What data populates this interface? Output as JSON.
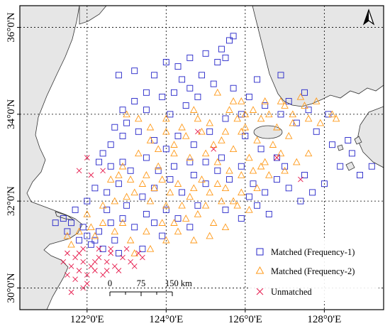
{
  "map": {
    "lon_range": [
      120.3,
      129.5
    ],
    "lat_range": [
      29.5,
      36.5
    ],
    "x_ticks": [
      {
        "value": 122,
        "label": "122°0'E"
      },
      {
        "value": 124,
        "label": "124°0'E"
      },
      {
        "value": 126,
        "label": "126°0'E"
      },
      {
        "value": 128,
        "label": "128°0'E"
      }
    ],
    "y_ticks": [
      {
        "value": 30,
        "label": "30°0'N"
      },
      {
        "value": 32,
        "label": "32°0'N"
      },
      {
        "value": 34,
        "label": "34°0'N"
      },
      {
        "value": 36,
        "label": "36°0'N"
      }
    ],
    "grid": true,
    "land_color": "#e6e6e6",
    "sea_color": "#ffffff",
    "north_arrow": "north-arrow-icon"
  },
  "series_styles": {
    "matched1": {
      "color": "#2424c8",
      "marker": "square"
    },
    "matched2": {
      "color": "#ff9a1a",
      "marker": "triangle"
    },
    "unmatched": {
      "color": "#e6194b",
      "marker": "x"
    }
  },
  "legend": {
    "placement": "bottom-right",
    "items": [
      {
        "key": "matched1",
        "label": "Matched (Frequency-1)"
      },
      {
        "key": "matched2",
        "label": "Matched (Frequency-2)"
      },
      {
        "key": "unmatched",
        "label": "Unmatched"
      }
    ]
  },
  "scale_bar": {
    "labels": [
      "0",
      "75",
      "150 km"
    ]
  },
  "chart_data": {
    "type": "scatter",
    "xlabel": "",
    "ylabel": "",
    "xlim": [
      120.3,
      129.5
    ],
    "ylim": [
      29.5,
      36.5
    ],
    "series": [
      {
        "key": "matched1",
        "name": "Matched (Frequency-1)",
        "points": [
          [
            125.7,
            35.8
          ],
          [
            125.6,
            35.7
          ],
          [
            125.4,
            35.5
          ],
          [
            125.5,
            35.3
          ],
          [
            125.3,
            35.2
          ],
          [
            125.0,
            35.4
          ],
          [
            124.6,
            35.3
          ],
          [
            124.3,
            35.1
          ],
          [
            124.0,
            35.2
          ],
          [
            123.7,
            34.9
          ],
          [
            124.4,
            34.8
          ],
          [
            124.9,
            34.9
          ],
          [
            125.2,
            34.7
          ],
          [
            124.6,
            34.6
          ],
          [
            124.2,
            34.5
          ],
          [
            123.9,
            34.4
          ],
          [
            123.5,
            34.5
          ],
          [
            123.2,
            34.3
          ],
          [
            122.9,
            34.1
          ],
          [
            123.5,
            34.1
          ],
          [
            124.1,
            34.0
          ],
          [
            124.5,
            34.2
          ],
          [
            124.8,
            34.4
          ],
          [
            123.0,
            33.8
          ],
          [
            122.7,
            33.7
          ],
          [
            122.9,
            33.5
          ],
          [
            122.6,
            33.3
          ],
          [
            122.4,
            33.1
          ],
          [
            122.3,
            32.9
          ],
          [
            122.6,
            32.8
          ],
          [
            122.9,
            32.9
          ],
          [
            123.3,
            33.6
          ],
          [
            123.7,
            33.4
          ],
          [
            124.0,
            33.2
          ],
          [
            124.3,
            33.5
          ],
          [
            124.7,
            33.3
          ],
          [
            125.1,
            33.6
          ],
          [
            123.5,
            33.0
          ],
          [
            123.1,
            32.7
          ],
          [
            122.8,
            32.4
          ],
          [
            122.5,
            32.2
          ],
          [
            122.2,
            32.3
          ],
          [
            122.0,
            32.0
          ],
          [
            121.7,
            31.8
          ],
          [
            121.4,
            31.6
          ],
          [
            121.2,
            31.5
          ],
          [
            121.5,
            31.3
          ],
          [
            121.8,
            31.1
          ],
          [
            122.1,
            31.0
          ],
          [
            122.4,
            30.9
          ],
          [
            122.7,
            31.1
          ],
          [
            122.3,
            31.3
          ],
          [
            122.6,
            31.5
          ],
          [
            122.9,
            31.6
          ],
          [
            123.2,
            31.4
          ],
          [
            123.5,
            31.7
          ],
          [
            123.7,
            31.5
          ],
          [
            124.0,
            31.8
          ],
          [
            123.4,
            32.1
          ],
          [
            123.7,
            32.3
          ],
          [
            124.1,
            32.5
          ],
          [
            124.4,
            32.2
          ],
          [
            124.7,
            32.6
          ],
          [
            125.0,
            32.4
          ],
          [
            125.3,
            32.7
          ],
          [
            125.6,
            32.5
          ],
          [
            125.9,
            32.8
          ],
          [
            126.2,
            32.4
          ],
          [
            126.5,
            32.2
          ],
          [
            126.8,
            32.5
          ],
          [
            127.1,
            32.3
          ],
          [
            127.4,
            32.0
          ],
          [
            127.7,
            32.2
          ],
          [
            128.0,
            32.4
          ],
          [
            127.5,
            32.6
          ],
          [
            128.4,
            32.8
          ],
          [
            128.9,
            32.6
          ],
          [
            129.2,
            32.8
          ],
          [
            128.7,
            33.1
          ],
          [
            128.2,
            33.3
          ],
          [
            127.8,
            33.6
          ],
          [
            127.3,
            33.8
          ],
          [
            126.9,
            34.0
          ],
          [
            126.5,
            34.2
          ],
          [
            126.1,
            34.4
          ],
          [
            125.7,
            34.6
          ],
          [
            126.3,
            34.8
          ],
          [
            126.9,
            34.9
          ],
          [
            127.5,
            34.5
          ],
          [
            126.0,
            33.5
          ],
          [
            126.4,
            33.2
          ],
          [
            126.8,
            33.0
          ],
          [
            125.4,
            33.0
          ],
          [
            125.0,
            32.9
          ],
          [
            124.6,
            32.9
          ],
          [
            124.2,
            32.8
          ],
          [
            123.8,
            32.7
          ],
          [
            122.5,
            31.8
          ],
          [
            121.9,
            31.4
          ],
          [
            122.0,
            31.2
          ],
          [
            122.2,
            31.1
          ],
          [
            121.6,
            31.5
          ],
          [
            123.0,
            31.9
          ],
          [
            124.3,
            31.6
          ],
          [
            124.8,
            31.9
          ],
          [
            125.5,
            31.8
          ],
          [
            125.9,
            31.6
          ],
          [
            126.3,
            31.9
          ],
          [
            126.6,
            31.7
          ],
          [
            122.8,
            34.9
          ],
          [
            123.2,
            35.0
          ],
          [
            125.5,
            33.9
          ],
          [
            125.9,
            34.0
          ],
          [
            127.1,
            34.3
          ],
          [
            127.6,
            34.1
          ],
          [
            128.1,
            34.0
          ],
          [
            128.6,
            33.4
          ],
          [
            127.0,
            32.8
          ],
          [
            126.1,
            32.1
          ],
          [
            124.6,
            31.4
          ],
          [
            123.9,
            31.2
          ],
          [
            123.4,
            30.9
          ],
          [
            122.8,
            30.8
          ]
        ]
      },
      {
        "key": "matched2",
        "name": "Matched (Frequency-2)",
        "points": [
          [
            125.3,
            34.5
          ],
          [
            125.7,
            34.3
          ],
          [
            126.2,
            34.1
          ],
          [
            126.6,
            34.0
          ],
          [
            127.0,
            34.2
          ],
          [
            127.4,
            34.4
          ],
          [
            127.8,
            34.3
          ],
          [
            128.2,
            34.0
          ],
          [
            127.6,
            33.9
          ],
          [
            127.2,
            33.8
          ],
          [
            126.8,
            33.7
          ],
          [
            126.4,
            33.9
          ],
          [
            126.0,
            34.0
          ],
          [
            125.6,
            34.1
          ],
          [
            125.9,
            33.6
          ],
          [
            126.3,
            33.4
          ],
          [
            126.7,
            33.3
          ],
          [
            127.1,
            33.5
          ],
          [
            126.9,
            33.1
          ],
          [
            126.5,
            32.9
          ],
          [
            126.1,
            33.0
          ],
          [
            125.7,
            33.2
          ],
          [
            125.4,
            33.4
          ],
          [
            125.1,
            33.8
          ],
          [
            124.8,
            33.9
          ],
          [
            124.4,
            33.7
          ],
          [
            124.0,
            33.6
          ],
          [
            123.6,
            33.7
          ],
          [
            123.3,
            33.9
          ],
          [
            123.0,
            34.0
          ],
          [
            123.8,
            33.2
          ],
          [
            124.2,
            33.1
          ],
          [
            124.6,
            33.0
          ],
          [
            125.0,
            33.1
          ],
          [
            125.3,
            32.9
          ],
          [
            125.6,
            32.7
          ],
          [
            125.9,
            32.6
          ],
          [
            126.2,
            32.7
          ],
          [
            126.6,
            32.6
          ],
          [
            127.0,
            32.7
          ],
          [
            127.3,
            32.9
          ],
          [
            127.6,
            33.1
          ],
          [
            126.3,
            32.3
          ],
          [
            125.9,
            32.2
          ],
          [
            125.5,
            32.3
          ],
          [
            125.1,
            32.2
          ],
          [
            124.7,
            32.3
          ],
          [
            124.3,
            32.4
          ],
          [
            123.9,
            32.5
          ],
          [
            123.5,
            32.6
          ],
          [
            123.1,
            32.5
          ],
          [
            122.8,
            32.6
          ],
          [
            123.2,
            32.2
          ],
          [
            123.6,
            32.0
          ],
          [
            124.0,
            31.9
          ],
          [
            124.4,
            31.9
          ],
          [
            124.8,
            31.7
          ],
          [
            125.2,
            31.5
          ],
          [
            125.5,
            31.4
          ],
          [
            125.1,
            31.2
          ],
          [
            124.7,
            31.1
          ],
          [
            124.3,
            31.3
          ],
          [
            123.9,
            31.5
          ],
          [
            123.5,
            31.3
          ],
          [
            123.1,
            31.1
          ],
          [
            122.7,
            31.3
          ],
          [
            122.4,
            31.5
          ],
          [
            122.1,
            31.4
          ],
          [
            121.8,
            31.3
          ],
          [
            121.5,
            31.2
          ],
          [
            122.0,
            31.7
          ],
          [
            122.4,
            31.9
          ],
          [
            122.7,
            32.0
          ],
          [
            123.0,
            32.1
          ],
          [
            123.4,
            32.4
          ],
          [
            123.8,
            32.8
          ],
          [
            124.2,
            33.3
          ],
          [
            124.5,
            33.5
          ],
          [
            124.9,
            33.6
          ],
          [
            125.2,
            33.3
          ],
          [
            125.5,
            33.6
          ],
          [
            125.8,
            33.9
          ],
          [
            126.5,
            34.3
          ],
          [
            127.2,
            34.0
          ],
          [
            127.9,
            33.8
          ],
          [
            128.3,
            33.9
          ],
          [
            126.1,
            31.8
          ],
          [
            125.8,
            31.9
          ],
          [
            125.4,
            32.0
          ],
          [
            124.6,
            32.1
          ],
          [
            124.1,
            32.2
          ],
          [
            123.7,
            32.3
          ],
          [
            122.9,
            32.8
          ],
          [
            122.6,
            32.5
          ],
          [
            123.3,
            33.1
          ],
          [
            123.6,
            33.4
          ],
          [
            124.0,
            33.9
          ],
          [
            124.7,
            34.1
          ],
          [
            125.9,
            34.3
          ],
          [
            126.9,
            34.3
          ],
          [
            127.5,
            34.2
          ],
          [
            124.5,
            31.6
          ],
          [
            124.0,
            31.1
          ],
          [
            123.6,
            30.9
          ],
          [
            123.2,
            30.8
          ],
          [
            125.0,
            31.9
          ],
          [
            126.4,
            32.8
          ],
          [
            126.0,
            33.7
          ],
          [
            122.2,
            31.2
          ],
          [
            121.6,
            31.0
          ],
          [
            122.9,
            31.5
          ],
          [
            124.9,
            32.5
          ],
          [
            125.3,
            32.4
          ],
          [
            125.7,
            32.0
          ],
          [
            124.2,
            31.5
          ]
        ]
      },
      {
        "key": "unmatched",
        "name": "Unmatched",
        "points": [
          [
            121.5,
            30.8
          ],
          [
            121.7,
            30.7
          ],
          [
            121.9,
            30.6
          ],
          [
            122.1,
            30.5
          ],
          [
            122.3,
            30.7
          ],
          [
            122.5,
            30.6
          ],
          [
            122.7,
            30.5
          ],
          [
            122.9,
            30.7
          ],
          [
            123.1,
            30.6
          ],
          [
            123.3,
            30.8
          ],
          [
            121.6,
            30.5
          ],
          [
            121.8,
            30.4
          ],
          [
            122.0,
            30.3
          ],
          [
            122.2,
            30.4
          ],
          [
            122.4,
            30.3
          ],
          [
            121.4,
            30.6
          ],
          [
            121.9,
            30.9
          ],
          [
            122.6,
            30.8
          ],
          [
            123.0,
            30.9
          ],
          [
            121.7,
            30.2
          ],
          [
            122.0,
            30.1
          ],
          [
            122.2,
            30.6
          ],
          [
            122.8,
            30.4
          ],
          [
            121.5,
            30.3
          ],
          [
            121.6,
            29.9
          ],
          [
            121.9,
            30.0
          ],
          [
            123.2,
            30.5
          ],
          [
            122.5,
            30.4
          ],
          [
            121.8,
            30.8
          ],
          [
            122.3,
            30.9
          ],
          [
            121.8,
            32.7
          ],
          [
            122.1,
            32.6
          ],
          [
            122.0,
            33.0
          ],
          [
            122.4,
            32.7
          ],
          [
            124.8,
            33.6
          ],
          [
            125.2,
            33.2
          ],
          [
            126.8,
            33.0
          ],
          [
            127.4,
            32.5
          ],
          [
            122.6,
            30.9
          ],
          [
            123.4,
            30.7
          ]
        ]
      }
    ]
  }
}
